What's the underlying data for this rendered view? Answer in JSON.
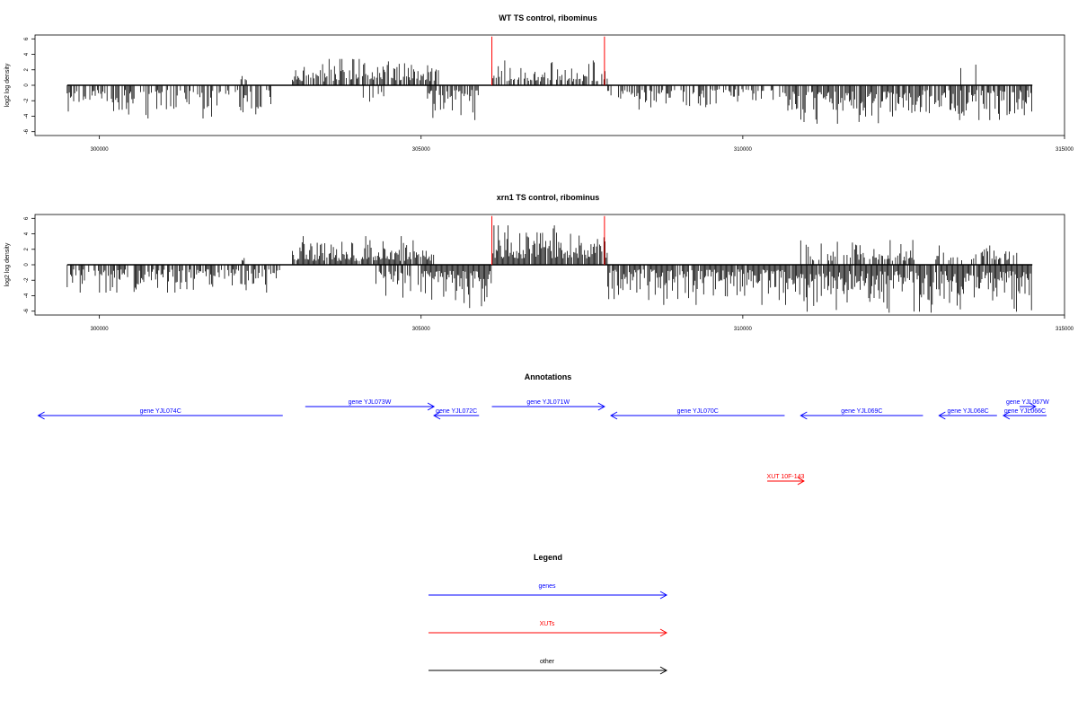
{
  "chart_data": [
    {
      "type": "bar",
      "title": "WT TS control, ribominus",
      "xlabel": "",
      "ylabel": "log2 log density",
      "xlim": [
        299000,
        315000
      ],
      "ylim": [
        -6.5,
        6.5
      ],
      "x_ticks": [
        300000,
        305000,
        310000,
        315000
      ],
      "y_ticks": [
        6,
        4,
        2,
        0,
        -2,
        -4,
        -6
      ],
      "baseline_range": [
        299500,
        314500
      ],
      "marker_lines": {
        "color": "#ff0000",
        "x": [
          306100,
          307850
        ],
        "y_top": 6.3
      },
      "signal_segments": [
        {
          "start": 299500,
          "end": 302700,
          "sign": -1,
          "amp_min": 0.6,
          "amp_max": 4.3,
          "density": 0.55
        },
        {
          "start": 302200,
          "end": 302300,
          "sign": 1,
          "amp_min": 0.5,
          "amp_max": 1.2,
          "density": 0.4
        },
        {
          "start": 303000,
          "end": 304800,
          "sign": 1,
          "amp_min": 0.5,
          "amp_max": 3.4,
          "density": 0.7
        },
        {
          "start": 304100,
          "end": 304500,
          "sign": -1,
          "amp_min": 0.8,
          "amp_max": 2.8,
          "density": 0.25
        },
        {
          "start": 304800,
          "end": 305300,
          "sign": 1,
          "amp_min": 0.5,
          "amp_max": 3.1,
          "density": 0.6
        },
        {
          "start": 305100,
          "end": 305900,
          "sign": -1,
          "amp_min": 0.6,
          "amp_max": 4.5,
          "density": 0.75
        },
        {
          "start": 306100,
          "end": 307900,
          "sign": 1,
          "amp_min": 0.5,
          "amp_max": 3.2,
          "density": 0.6
        },
        {
          "start": 307900,
          "end": 309500,
          "sign": -1,
          "amp_min": 0.6,
          "amp_max": 3.4,
          "density": 0.55
        },
        {
          "start": 309500,
          "end": 310700,
          "sign": -1,
          "amp_min": 0.5,
          "amp_max": 2.8,
          "density": 0.45
        },
        {
          "start": 310700,
          "end": 312800,
          "sign": -1,
          "amp_min": 0.8,
          "amp_max": 5.3,
          "density": 0.85
        },
        {
          "start": 312800,
          "end": 314500,
          "sign": -1,
          "amp_min": 0.6,
          "amp_max": 4.5,
          "density": 0.75
        },
        {
          "start": 312950,
          "end": 313950,
          "sign": 1,
          "amp_min": 2.2,
          "amp_max": 2.8,
          "density": 0.03
        }
      ]
    },
    {
      "type": "bar",
      "title": "xrn1 TS control, ribominus",
      "xlabel": "",
      "ylabel": "log2 log density",
      "xlim": [
        299000,
        315000
      ],
      "ylim": [
        -6.5,
        6.5
      ],
      "x_ticks": [
        300000,
        305000,
        310000,
        315000
      ],
      "y_ticks": [
        6,
        4,
        2,
        0,
        -2,
        -4,
        -6
      ],
      "baseline_range": [
        299500,
        314500
      ],
      "marker_lines": {
        "color": "#ff0000",
        "x": [
          306100,
          307850
        ],
        "y_top": 6.3
      },
      "signal_segments": [
        {
          "start": 299500,
          "end": 302900,
          "sign": -1,
          "amp_min": 0.6,
          "amp_max": 3.6,
          "density": 0.7
        },
        {
          "start": 302200,
          "end": 302300,
          "sign": 1,
          "amp_min": 0.5,
          "amp_max": 1.2,
          "density": 0.4
        },
        {
          "start": 303000,
          "end": 305200,
          "sign": 1,
          "amp_min": 0.5,
          "amp_max": 3.7,
          "density": 0.9
        },
        {
          "start": 304300,
          "end": 305000,
          "sign": -1,
          "amp_min": 0.8,
          "amp_max": 4.4,
          "density": 0.5
        },
        {
          "start": 305000,
          "end": 306100,
          "sign": -1,
          "amp_min": 0.8,
          "amp_max": 5.6,
          "density": 0.95
        },
        {
          "start": 306100,
          "end": 307900,
          "sign": 1,
          "amp_min": 0.8,
          "amp_max": 5.1,
          "density": 0.95
        },
        {
          "start": 307900,
          "end": 310800,
          "sign": -1,
          "amp_min": 0.6,
          "amp_max": 5.2,
          "density": 0.9
        },
        {
          "start": 310800,
          "end": 314500,
          "sign": -1,
          "amp_min": 0.8,
          "amp_max": 6.2,
          "density": 0.95
        },
        {
          "start": 310900,
          "end": 312700,
          "sign": 1,
          "amp_min": 0.5,
          "amp_max": 3.3,
          "density": 0.55
        },
        {
          "start": 313000,
          "end": 314300,
          "sign": 1,
          "amp_min": 0.5,
          "amp_max": 2.5,
          "density": 0.35
        }
      ]
    }
  ],
  "annotations": {
    "title": "Annotations",
    "genes_color": "#0000ff",
    "xut_color": "#ff0000",
    "features": [
      {
        "label": "gene YJL074C",
        "kind": "gene",
        "strand": "-",
        "row": 1,
        "start": 299050,
        "end": 302850
      },
      {
        "label": "gene YJL073W",
        "kind": "gene",
        "strand": "+",
        "row": 0,
        "start": 303200,
        "end": 305200
      },
      {
        "label": "gene YJL072C",
        "kind": "gene",
        "strand": "-",
        "row": 1,
        "start": 305200,
        "end": 305900
      },
      {
        "label": "gene YJL071W",
        "kind": "gene",
        "strand": "+",
        "row": 0,
        "start": 306100,
        "end": 307850
      },
      {
        "label": "gene YJL070C",
        "kind": "gene",
        "strand": "-",
        "row": 1,
        "start": 307950,
        "end": 310650
      },
      {
        "label": "gene YJL069C",
        "kind": "gene",
        "strand": "-",
        "row": 1,
        "start": 310900,
        "end": 312800
      },
      {
        "label": "gene YJL068C",
        "kind": "gene",
        "strand": "-",
        "row": 1,
        "start": 313050,
        "end": 313950
      },
      {
        "label": "gene YJL067W",
        "kind": "gene",
        "strand": "+",
        "row": 0,
        "start": 314300,
        "end": 314550
      },
      {
        "label": "gene YJL066C",
        "kind": "gene",
        "strand": "-",
        "row": 1,
        "start": 314050,
        "end": 314850
      },
      {
        "label": "XUT 10F-143",
        "kind": "xut",
        "strand": "+",
        "row": 3,
        "start": 310380,
        "end": 310950
      }
    ]
  },
  "legend": {
    "title": "Legend",
    "items": [
      {
        "label": "genes",
        "color": "#0000ff"
      },
      {
        "label": "XUTs",
        "color": "#ff0000"
      },
      {
        "label": "other",
        "color": "#000000"
      }
    ]
  }
}
